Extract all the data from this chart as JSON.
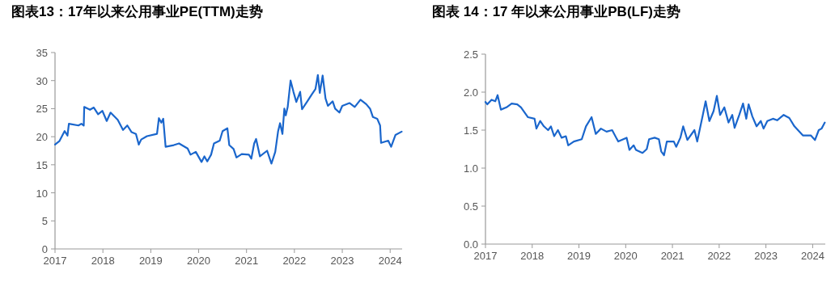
{
  "chart_data": [
    {
      "type": "line",
      "title": "图表13：17年以来公用事业PE(TTM)走势",
      "xlim": [
        2017,
        2024.25
      ],
      "xticks": [
        2017,
        2018,
        2019,
        2020,
        2021,
        2022,
        2023,
        2024
      ],
      "ylim": [
        0,
        35
      ],
      "yticks": [
        0,
        5,
        10,
        15,
        20,
        25,
        30,
        35
      ],
      "grid": false,
      "line_style": "solid",
      "x": [
        2017.0,
        2017.09,
        2017.2,
        2017.26,
        2017.29,
        2017.49,
        2017.55,
        2017.6,
        2017.61,
        2017.73,
        2017.81,
        2017.9,
        2017.99,
        2018.08,
        2018.16,
        2018.31,
        2018.42,
        2018.51,
        2018.6,
        2018.69,
        2018.75,
        2018.8,
        2018.92,
        2019.13,
        2019.17,
        2019.22,
        2019.26,
        2019.31,
        2019.48,
        2019.59,
        2019.77,
        2019.83,
        2019.94,
        2020.06,
        2020.12,
        2020.18,
        2020.26,
        2020.32,
        2020.44,
        2020.5,
        2020.6,
        2020.64,
        2020.73,
        2020.79,
        2020.9,
        2021.05,
        2021.1,
        2021.16,
        2021.2,
        2021.28,
        2021.43,
        2021.52,
        2021.6,
        2021.66,
        2021.7,
        2021.75,
        2021.79,
        2021.82,
        2021.86,
        2021.92,
        2021.98,
        2022.04,
        2022.12,
        2022.16,
        2022.27,
        2022.36,
        2022.44,
        2022.49,
        2022.53,
        2022.59,
        2022.65,
        2022.7,
        2022.8,
        2022.85,
        2022.94,
        2023.0,
        2023.15,
        2023.26,
        2023.38,
        2023.5,
        2023.58,
        2023.64,
        2023.73,
        2023.79,
        2023.81,
        2023.96,
        2024.02,
        2024.11,
        2024.24
      ],
      "series": [
        {
          "color": "#1a66cc",
          "values": [
            18.6,
            19.2,
            21,
            20.2,
            22.3,
            22,
            22.3,
            22,
            25.3,
            24.8,
            25.2,
            24,
            24.6,
            22.8,
            24.3,
            23,
            21.2,
            22,
            20.8,
            20.5,
            18.6,
            19.5,
            20.1,
            20.5,
            23.3,
            22.5,
            23.2,
            18.2,
            18.5,
            18.8,
            17.9,
            16.8,
            17.3,
            15.5,
            16.5,
            15.6,
            16.8,
            18.8,
            19.3,
            21,
            21.5,
            18.5,
            17.8,
            16.3,
            16.9,
            16.8,
            16.1,
            18.8,
            19.6,
            16.5,
            17.5,
            15.2,
            17.3,
            21,
            22.4,
            20.5,
            25,
            23.8,
            25.3,
            30,
            28,
            26.2,
            28,
            24.9,
            26.3,
            27.5,
            28.5,
            31,
            27.8,
            30.9,
            26.8,
            25.5,
            26.3,
            25,
            24.3,
            25.5,
            26,
            25.3,
            26.6,
            25.8,
            25,
            23.5,
            23.2,
            22,
            18.9,
            19.3,
            18.2,
            20.3,
            20.9
          ]
        }
      ]
    },
    {
      "type": "line",
      "title": "图表 14：17 年以来公用事业PB(LF)走势",
      "xlim": [
        2017,
        2024.27
      ],
      "xticks": [
        2017,
        2018,
        2019,
        2020,
        2021,
        2022,
        2023,
        2024
      ],
      "ylim": [
        0,
        2.5
      ],
      "yticks": [
        {
          "value": 0,
          "label": "0.0"
        },
        {
          "value": 0.5,
          "label": "0.5"
        },
        {
          "value": 1,
          "label": "1.0"
        },
        {
          "value": 1.5,
          "label": "1.5"
        },
        {
          "value": 2,
          "label": "2.0"
        },
        {
          "value": 2.5,
          "label": "2.5"
        }
      ],
      "grid": false,
      "line_style": "solid",
      "x": [
        2017.0,
        2017.04,
        2017.13,
        2017.21,
        2017.26,
        2017.33,
        2017.45,
        2017.56,
        2017.68,
        2017.76,
        2017.91,
        2018.05,
        2018.09,
        2018.17,
        2018.25,
        2018.34,
        2018.4,
        2018.47,
        2018.55,
        2018.63,
        2018.72,
        2018.77,
        2018.89,
        2019.06,
        2019.15,
        2019.27,
        2019.36,
        2019.47,
        2019.59,
        2019.71,
        2019.84,
        2020.02,
        2020.08,
        2020.17,
        2020.22,
        2020.36,
        2020.45,
        2020.5,
        2020.62,
        2020.71,
        2020.76,
        2020.82,
        2020.88,
        2021.03,
        2021.08,
        2021.17,
        2021.23,
        2021.32,
        2021.47,
        2021.53,
        2021.65,
        2021.71,
        2021.79,
        2021.88,
        2021.95,
        2022.02,
        2022.11,
        2022.2,
        2022.28,
        2022.33,
        2022.43,
        2022.51,
        2022.58,
        2022.63,
        2022.71,
        2022.8,
        2022.89,
        2022.95,
        2023.03,
        2023.15,
        2023.24,
        2023.38,
        2023.5,
        2023.61,
        2023.79,
        2023.96,
        2024.05,
        2024.13,
        2024.19,
        2024.26
      ],
      "series": [
        {
          "color": "#1a66cc",
          "values": [
            1.87,
            1.84,
            1.9,
            1.88,
            1.96,
            1.77,
            1.8,
            1.85,
            1.84,
            1.8,
            1.67,
            1.65,
            1.52,
            1.62,
            1.55,
            1.5,
            1.55,
            1.42,
            1.5,
            1.4,
            1.42,
            1.3,
            1.35,
            1.38,
            1.55,
            1.67,
            1.45,
            1.52,
            1.48,
            1.5,
            1.35,
            1.4,
            1.24,
            1.3,
            1.24,
            1.2,
            1.25,
            1.38,
            1.4,
            1.38,
            1.22,
            1.17,
            1.35,
            1.35,
            1.28,
            1.4,
            1.55,
            1.37,
            1.5,
            1.35,
            1.7,
            1.88,
            1.62,
            1.75,
            1.95,
            1.7,
            1.8,
            1.6,
            1.7,
            1.53,
            1.7,
            1.85,
            1.65,
            1.84,
            1.68,
            1.55,
            1.62,
            1.52,
            1.62,
            1.65,
            1.63,
            1.7,
            1.66,
            1.55,
            1.43,
            1.43,
            1.37,
            1.5,
            1.52,
            1.6
          ]
        }
      ]
    }
  ]
}
